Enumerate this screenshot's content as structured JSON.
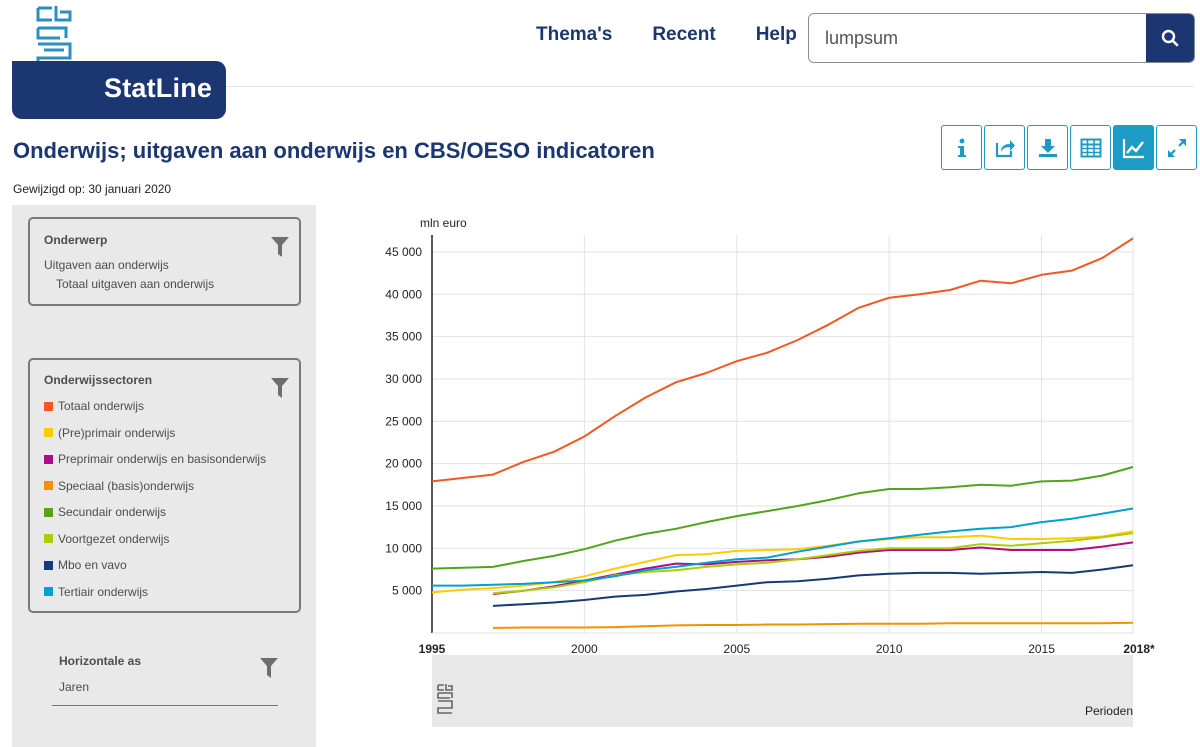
{
  "header": {
    "logo_text": "StatLine",
    "nav": [
      "Thema's",
      "Recent",
      "Help"
    ],
    "search_value": "lumpsum"
  },
  "page": {
    "title": "Onderwijs; uitgaven aan onderwijs en CBS/OESO indicatoren",
    "modified": "Gewijzigd op: 30 januari 2020"
  },
  "toolbar": {
    "buttons": [
      "info-icon",
      "share-icon",
      "download-icon",
      "table-icon",
      "line-chart-icon",
      "expand-icon"
    ],
    "active": "line-chart-icon",
    "accent_color": "#1d9bc4"
  },
  "sidebar": {
    "onderwerp": {
      "title": "Onderwerp",
      "line1": "Uitgaven aan onderwijs",
      "line2": "Totaal uitgaven aan onderwijs"
    },
    "sectoren": {
      "title": "Onderwijssectoren",
      "items": [
        {
          "label": "Totaal onderwijs",
          "color": "#f05a22"
        },
        {
          "label": "(Pre)primair onderwijs",
          "color": "#ffcc00"
        },
        {
          "label": "Preprimair onderwijs en basisonderwijs",
          "color": "#af0e80"
        },
        {
          "label": "Speciaal (basis)onderwijs",
          "color": "#f39200"
        },
        {
          "label": "Secundair onderwijs",
          "color": "#53a31d"
        },
        {
          "label": "Voortgezet onderwijs",
          "color": "#afcb05"
        },
        {
          "label": "Mbo en vavo",
          "color": "#163a72"
        },
        {
          "label": "Tertiair onderwijs",
          "color": "#00a1cd"
        }
      ]
    },
    "horizontale": {
      "title": "Horizontale as",
      "value": "Jaren"
    }
  },
  "chart_data": {
    "type": "line",
    "ylabel": "mln euro",
    "xlabel": "Perioden",
    "ylim": [
      0,
      47000
    ],
    "xlim": [
      1995,
      2018
    ],
    "yticks": [
      5000,
      10000,
      15000,
      20000,
      25000,
      30000,
      35000,
      40000,
      45000
    ],
    "ytick_labels": [
      "5 000",
      "10 000",
      "15 000",
      "20 000",
      "25 000",
      "30 000",
      "35 000",
      "40 000",
      "45 000"
    ],
    "xticks": [
      1995,
      2000,
      2005,
      2010,
      2015,
      2018
    ],
    "xtick_labels": [
      "1995",
      "2000",
      "2005",
      "2010",
      "2015",
      "2018*"
    ],
    "grid": true,
    "x": [
      1995,
      1996,
      1997,
      1998,
      1999,
      2000,
      2001,
      2002,
      2003,
      2004,
      2005,
      2006,
      2007,
      2008,
      2009,
      2010,
      2011,
      2012,
      2013,
      2014,
      2015,
      2016,
      2017,
      2018
    ],
    "series": [
      {
        "name": "Totaal onderwijs",
        "color": "#f05a22",
        "values": [
          17900,
          18300,
          18700,
          20200,
          21400,
          23200,
          25600,
          27800,
          29600,
          30700,
          32100,
          33100,
          34600,
          36400,
          38400,
          39600,
          40000,
          40500,
          41600,
          41300,
          42300,
          42800,
          44300,
          46600
        ]
      },
      {
        "name": "(Pre)primair onderwijs",
        "color": "#ffcc00",
        "values": [
          4800,
          5100,
          5300,
          5600,
          6000,
          6700,
          7600,
          8400,
          9200,
          9300,
          9700,
          9800,
          9900,
          10300,
          10800,
          11100,
          11300,
          11300,
          11500,
          11100,
          11100,
          11200,
          11400,
          12000
        ]
      },
      {
        "name": "Preprimair onderwijs en basisonderwijs",
        "color": "#af0e80",
        "values": [
          null,
          null,
          4600,
          5000,
          5500,
          6200,
          6900,
          7600,
          8200,
          8100,
          8400,
          8600,
          8700,
          9000,
          9500,
          9800,
          9800,
          9800,
          10100,
          9800,
          9800,
          9800,
          10200,
          10700
        ]
      },
      {
        "name": "Speciaal (basis)onderwijs",
        "color": "#f39200",
        "values": [
          null,
          null,
          600,
          650,
          650,
          650,
          700,
          800,
          900,
          950,
          950,
          1000,
          1000,
          1050,
          1100,
          1100,
          1100,
          1150,
          1150,
          1150,
          1150,
          1150,
          1150,
          1200
        ]
      },
      {
        "name": "Secundair onderwijs",
        "color": "#53a31d",
        "values": [
          7600,
          7700,
          7800,
          8500,
          9100,
          9900,
          10900,
          11700,
          12300,
          13100,
          13800,
          14400,
          15000,
          15700,
          16500,
          17000,
          17000,
          17200,
          17500,
          17400,
          17900,
          18000,
          18600,
          19600
        ]
      },
      {
        "name": "Voortgezet onderwijs",
        "color": "#afcb05",
        "values": [
          null,
          null,
          4700,
          5000,
          5400,
          6000,
          6800,
          7200,
          7400,
          7800,
          8100,
          8300,
          8700,
          9200,
          9700,
          10000,
          10000,
          10000,
          10500,
          10300,
          10600,
          10900,
          11300,
          11800
        ]
      },
      {
        "name": "Mbo en vavo",
        "color": "#163a72",
        "values": [
          null,
          null,
          3200,
          3400,
          3600,
          3900,
          4300,
          4500,
          4900,
          5200,
          5600,
          6000,
          6100,
          6400,
          6800,
          7000,
          7100,
          7100,
          7000,
          7100,
          7200,
          7100,
          7500,
          8000
        ]
      },
      {
        "name": "Tertiair onderwijs",
        "color": "#00a1cd",
        "values": [
          5600,
          5600,
          5700,
          5800,
          6000,
          6200,
          6700,
          7400,
          7800,
          8300,
          8700,
          8900,
          9600,
          10200,
          10800,
          11200,
          11600,
          12000,
          12300,
          12500,
          13100,
          13500,
          14100,
          14700
        ]
      }
    ]
  }
}
